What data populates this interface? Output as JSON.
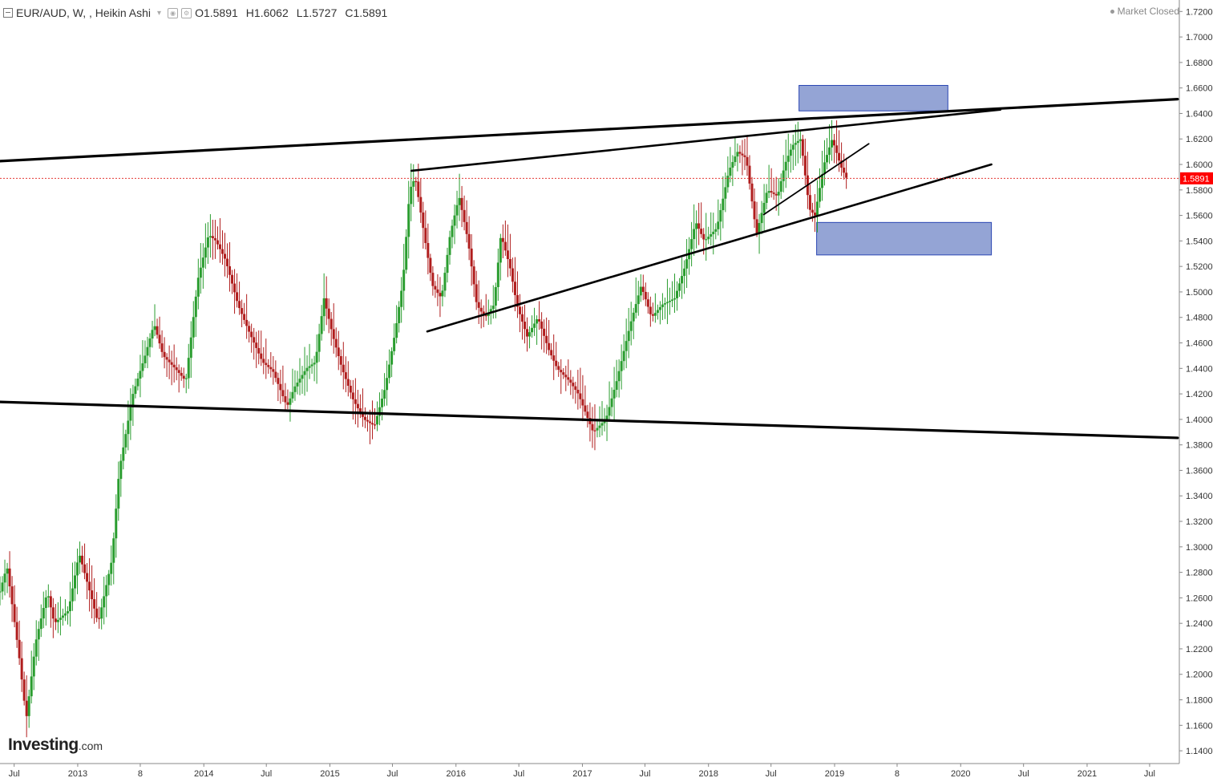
{
  "header": {
    "symbol": "EUR/AUD, W, , Heikin Ashi",
    "ohlc": [
      {
        "k": "O",
        "v": "1.5891"
      },
      {
        "k": "H",
        "v": "1.6062"
      },
      {
        "k": "L",
        "v": "1.5727"
      },
      {
        "k": "C",
        "v": "1.5891"
      }
    ],
    "market_status": "Market Closed"
  },
  "logo": {
    "main": "Investing",
    "suffix": ".com"
  },
  "price_tag": "1.5891",
  "colors": {
    "up": "#2a9d2f",
    "down": "#b01d1d",
    "price_tag": "#ff0000",
    "zone_fill": "#8e9fd3",
    "zone_stroke": "#2b47b3",
    "trendline": "#000000"
  },
  "chart_data": {
    "type": "candlestick",
    "style": "Heikin Ashi",
    "symbol": "EUR/AUD",
    "interval": "W",
    "y_axis": {
      "ylim": [
        1.13,
        1.729
      ],
      "ticks": [
        "1.7200",
        "1.7000",
        "1.6800",
        "1.6600",
        "1.6400",
        "1.6200",
        "1.6000",
        "1.5800",
        "1.5600",
        "1.5400",
        "1.5200",
        "1.5000",
        "1.4800",
        "1.4600",
        "1.4400",
        "1.4200",
        "1.4000",
        "1.3800",
        "1.3600",
        "1.3400",
        "1.3200",
        "1.3000",
        "1.2800",
        "1.2600",
        "1.2400",
        "1.2200",
        "1.2000",
        "1.1800",
        "1.1600",
        "1.1400"
      ],
      "side": "right"
    },
    "x_axis": {
      "xlim": [
        "2012-05-21",
        "2021-09-25"
      ],
      "ticks": [
        {
          "label": "Jul",
          "date": "2012-07-01"
        },
        {
          "label": "2013",
          "date": "2013-01-01"
        },
        {
          "label": "8",
          "date": "2013-07-01"
        },
        {
          "label": "2014",
          "date": "2014-01-01"
        },
        {
          "label": "Jul",
          "date": "2014-07-01"
        },
        {
          "label": "2015",
          "date": "2015-01-01"
        },
        {
          "label": "Jul",
          "date": "2015-07-01"
        },
        {
          "label": "2016",
          "date": "2016-01-01"
        },
        {
          "label": "Jul",
          "date": "2016-07-01"
        },
        {
          "label": "2017",
          "date": "2017-01-01"
        },
        {
          "label": "Jul",
          "date": "2017-07-01"
        },
        {
          "label": "2018",
          "date": "2018-01-01"
        },
        {
          "label": "Jul",
          "date": "2018-07-01"
        },
        {
          "label": "2019",
          "date": "2019-01-01"
        },
        {
          "label": "8",
          "date": "2019-07-01"
        },
        {
          "label": "2020",
          "date": "2020-01-01"
        },
        {
          "label": "Jul",
          "date": "2020-07-01"
        },
        {
          "label": "2021",
          "date": "2021-01-01"
        },
        {
          "label": "Jul",
          "date": "2021-07-01"
        }
      ]
    },
    "price_path": [
      {
        "date": "2012-05-21",
        "price": 1.265
      },
      {
        "date": "2012-06-10",
        "price": 1.285
      },
      {
        "date": "2012-07-15",
        "price": 1.215
      },
      {
        "date": "2012-08-05",
        "price": 1.165
      },
      {
        "date": "2012-09-01",
        "price": 1.225
      },
      {
        "date": "2012-10-05",
        "price": 1.265
      },
      {
        "date": "2012-10-25",
        "price": 1.24
      },
      {
        "date": "2012-12-05",
        "price": 1.25
      },
      {
        "date": "2013-01-05",
        "price": 1.295
      },
      {
        "date": "2013-02-10",
        "price": 1.26
      },
      {
        "date": "2013-03-01",
        "price": 1.24
      },
      {
        "date": "2013-04-10",
        "price": 1.29
      },
      {
        "date": "2013-05-01",
        "price": 1.36
      },
      {
        "date": "2013-06-10",
        "price": 1.42
      },
      {
        "date": "2013-07-15",
        "price": 1.45
      },
      {
        "date": "2013-08-10",
        "price": 1.475
      },
      {
        "date": "2013-09-05",
        "price": 1.45
      },
      {
        "date": "2013-10-10",
        "price": 1.44
      },
      {
        "date": "2013-11-10",
        "price": 1.43
      },
      {
        "date": "2013-12-15",
        "price": 1.51
      },
      {
        "date": "2014-01-15",
        "price": 1.545
      },
      {
        "date": "2014-02-05",
        "price": 1.54
      },
      {
        "date": "2014-03-05",
        "price": 1.525
      },
      {
        "date": "2014-04-10",
        "price": 1.49
      },
      {
        "date": "2014-05-10",
        "price": 1.47
      },
      {
        "date": "2014-06-20",
        "price": 1.445
      },
      {
        "date": "2014-07-20",
        "price": 1.438
      },
      {
        "date": "2014-08-30",
        "price": 1.41
      },
      {
        "date": "2014-09-20",
        "price": 1.425
      },
      {
        "date": "2014-10-25",
        "price": 1.44
      },
      {
        "date": "2014-11-20",
        "price": 1.445
      },
      {
        "date": "2014-12-15",
        "price": 1.495
      },
      {
        "date": "2015-01-10",
        "price": 1.465
      },
      {
        "date": "2015-02-05",
        "price": 1.44
      },
      {
        "date": "2015-03-10",
        "price": 1.415
      },
      {
        "date": "2015-04-10",
        "price": 1.4
      },
      {
        "date": "2015-05-10",
        "price": 1.395
      },
      {
        "date": "2015-06-10",
        "price": 1.425
      },
      {
        "date": "2015-07-10",
        "price": 1.47
      },
      {
        "date": "2015-08-01",
        "price": 1.51
      },
      {
        "date": "2015-08-20",
        "price": 1.58
      },
      {
        "date": "2015-09-05",
        "price": 1.59
      },
      {
        "date": "2015-10-01",
        "price": 1.545
      },
      {
        "date": "2015-10-25",
        "price": 1.505
      },
      {
        "date": "2015-11-20",
        "price": 1.495
      },
      {
        "date": "2015-12-15",
        "price": 1.545
      },
      {
        "date": "2016-01-10",
        "price": 1.575
      },
      {
        "date": "2016-02-05",
        "price": 1.54
      },
      {
        "date": "2016-03-01",
        "price": 1.49
      },
      {
        "date": "2016-03-25",
        "price": 1.48
      },
      {
        "date": "2016-04-20",
        "price": 1.49
      },
      {
        "date": "2016-05-10",
        "price": 1.545
      },
      {
        "date": "2016-06-05",
        "price": 1.52
      },
      {
        "date": "2016-06-25",
        "price": 1.49
      },
      {
        "date": "2016-07-25",
        "price": 1.465
      },
      {
        "date": "2016-08-25",
        "price": 1.48
      },
      {
        "date": "2016-09-25",
        "price": 1.455
      },
      {
        "date": "2016-10-20",
        "price": 1.44
      },
      {
        "date": "2016-11-25",
        "price": 1.43
      },
      {
        "date": "2016-12-20",
        "price": 1.42
      },
      {
        "date": "2017-02-01",
        "price": 1.39
      },
      {
        "date": "2017-03-10",
        "price": 1.4
      },
      {
        "date": "2017-04-10",
        "price": 1.43
      },
      {
        "date": "2017-05-20",
        "price": 1.475
      },
      {
        "date": "2017-06-20",
        "price": 1.505
      },
      {
        "date": "2017-07-20",
        "price": 1.48
      },
      {
        "date": "2017-08-20",
        "price": 1.49
      },
      {
        "date": "2017-09-25",
        "price": 1.495
      },
      {
        "date": "2017-10-25",
        "price": 1.52
      },
      {
        "date": "2017-11-25",
        "price": 1.555
      },
      {
        "date": "2017-12-20",
        "price": 1.54
      },
      {
        "date": "2018-01-25",
        "price": 1.55
      },
      {
        "date": "2018-03-01",
        "price": 1.595
      },
      {
        "date": "2018-03-25",
        "price": 1.61
      },
      {
        "date": "2018-04-20",
        "price": 1.605
      },
      {
        "date": "2018-05-20",
        "price": 1.545
      },
      {
        "date": "2018-06-20",
        "price": 1.58
      },
      {
        "date": "2018-07-20",
        "price": 1.575
      },
      {
        "date": "2018-08-10",
        "price": 1.6
      },
      {
        "date": "2018-09-01",
        "price": 1.615
      },
      {
        "date": "2018-09-25",
        "price": 1.62
      },
      {
        "date": "2018-10-20",
        "price": 1.565
      },
      {
        "date": "2018-11-05",
        "price": 1.56
      },
      {
        "date": "2018-12-01",
        "price": 1.6
      },
      {
        "date": "2018-12-25",
        "price": 1.62
      },
      {
        "date": "2019-01-20",
        "price": 1.598
      },
      {
        "date": "2019-02-05",
        "price": 1.589
      }
    ],
    "wick_extremes": {
      "high": 1.6725,
      "low": 1.1615
    },
    "last_close": 1.5891,
    "trendlines": [
      {
        "from": {
          "date": "2012-05-21",
          "price": 1.6026
        },
        "to": {
          "date": "2021-09-20",
          "price": 1.6512
        },
        "width": "thick"
      },
      {
        "from": {
          "date": "2012-05-21",
          "price": 1.4137
        },
        "to": {
          "date": "2021-09-20",
          "price": 1.3855
        },
        "width": "thick"
      },
      {
        "from": {
          "date": "2015-08-25",
          "price": 1.595
        },
        "to": {
          "date": "2020-04-25",
          "price": 1.643
        },
        "width": "medium"
      },
      {
        "from": {
          "date": "2015-10-10",
          "price": 1.469
        },
        "to": {
          "date": "2020-03-30",
          "price": 1.6
        },
        "width": "medium"
      },
      {
        "from": {
          "date": "2018-06-10",
          "price": 1.5607
        },
        "to": {
          "date": "2019-04-10",
          "price": 1.6162
        },
        "width": "thin"
      }
    ],
    "zones": [
      {
        "x_from": "2018-09-20",
        "x_to": "2019-11-25",
        "price_top": 1.662,
        "price_bottom": 1.642
      },
      {
        "x_from": "2018-11-10",
        "x_to": "2020-03-30",
        "price_top": 1.5545,
        "price_bottom": 1.529
      }
    ],
    "grid": false,
    "legend": "none"
  }
}
